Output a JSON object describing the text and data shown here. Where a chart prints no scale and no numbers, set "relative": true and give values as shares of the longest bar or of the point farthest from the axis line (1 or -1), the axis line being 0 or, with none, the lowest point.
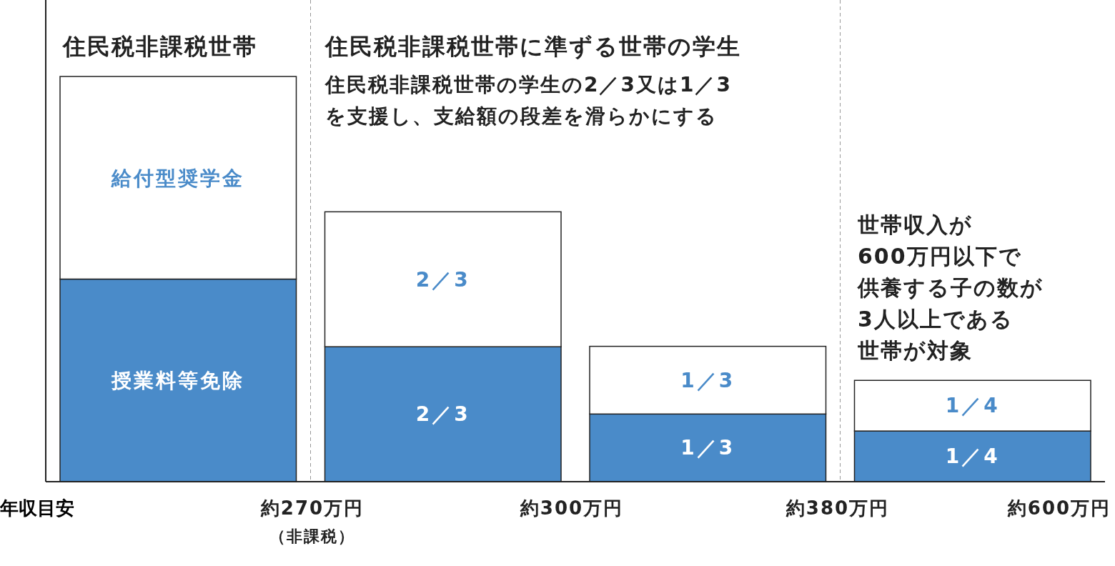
{
  "chart_data": {
    "type": "bar",
    "stacked": true,
    "relative": true,
    "xlabel": "年収目安",
    "categories": [
      null,
      null,
      null,
      null
    ],
    "series": [
      {
        "name": "授業料等免除",
        "color": "#4a8bc9",
        "values": [
          0.5,
          0.333,
          0.167,
          0.125
        ]
      },
      {
        "name": "給付型奨学金",
        "color": "#ffffff",
        "values": [
          0.5,
          0.333,
          0.167,
          0.125
        ]
      }
    ],
    "annotations": [
      "住民税非課税世帯",
      "住民税非課税世帯に準ずる世帯の学生",
      "住民税非課税世帯の学生の2／3又は1／3",
      "を支援し、支給額の段差を滑らかにする",
      "世帯収入が",
      "600万円以下で",
      "供養する子の数が",
      "3人以上である",
      "世帯が対象",
      "約270万円",
      "（非課税）",
      "約300万円",
      "約380万円",
      "約600万円",
      "2／3",
      "2／3",
      "1／3",
      "1／3",
      "1／4",
      "1／4"
    ]
  }
}
